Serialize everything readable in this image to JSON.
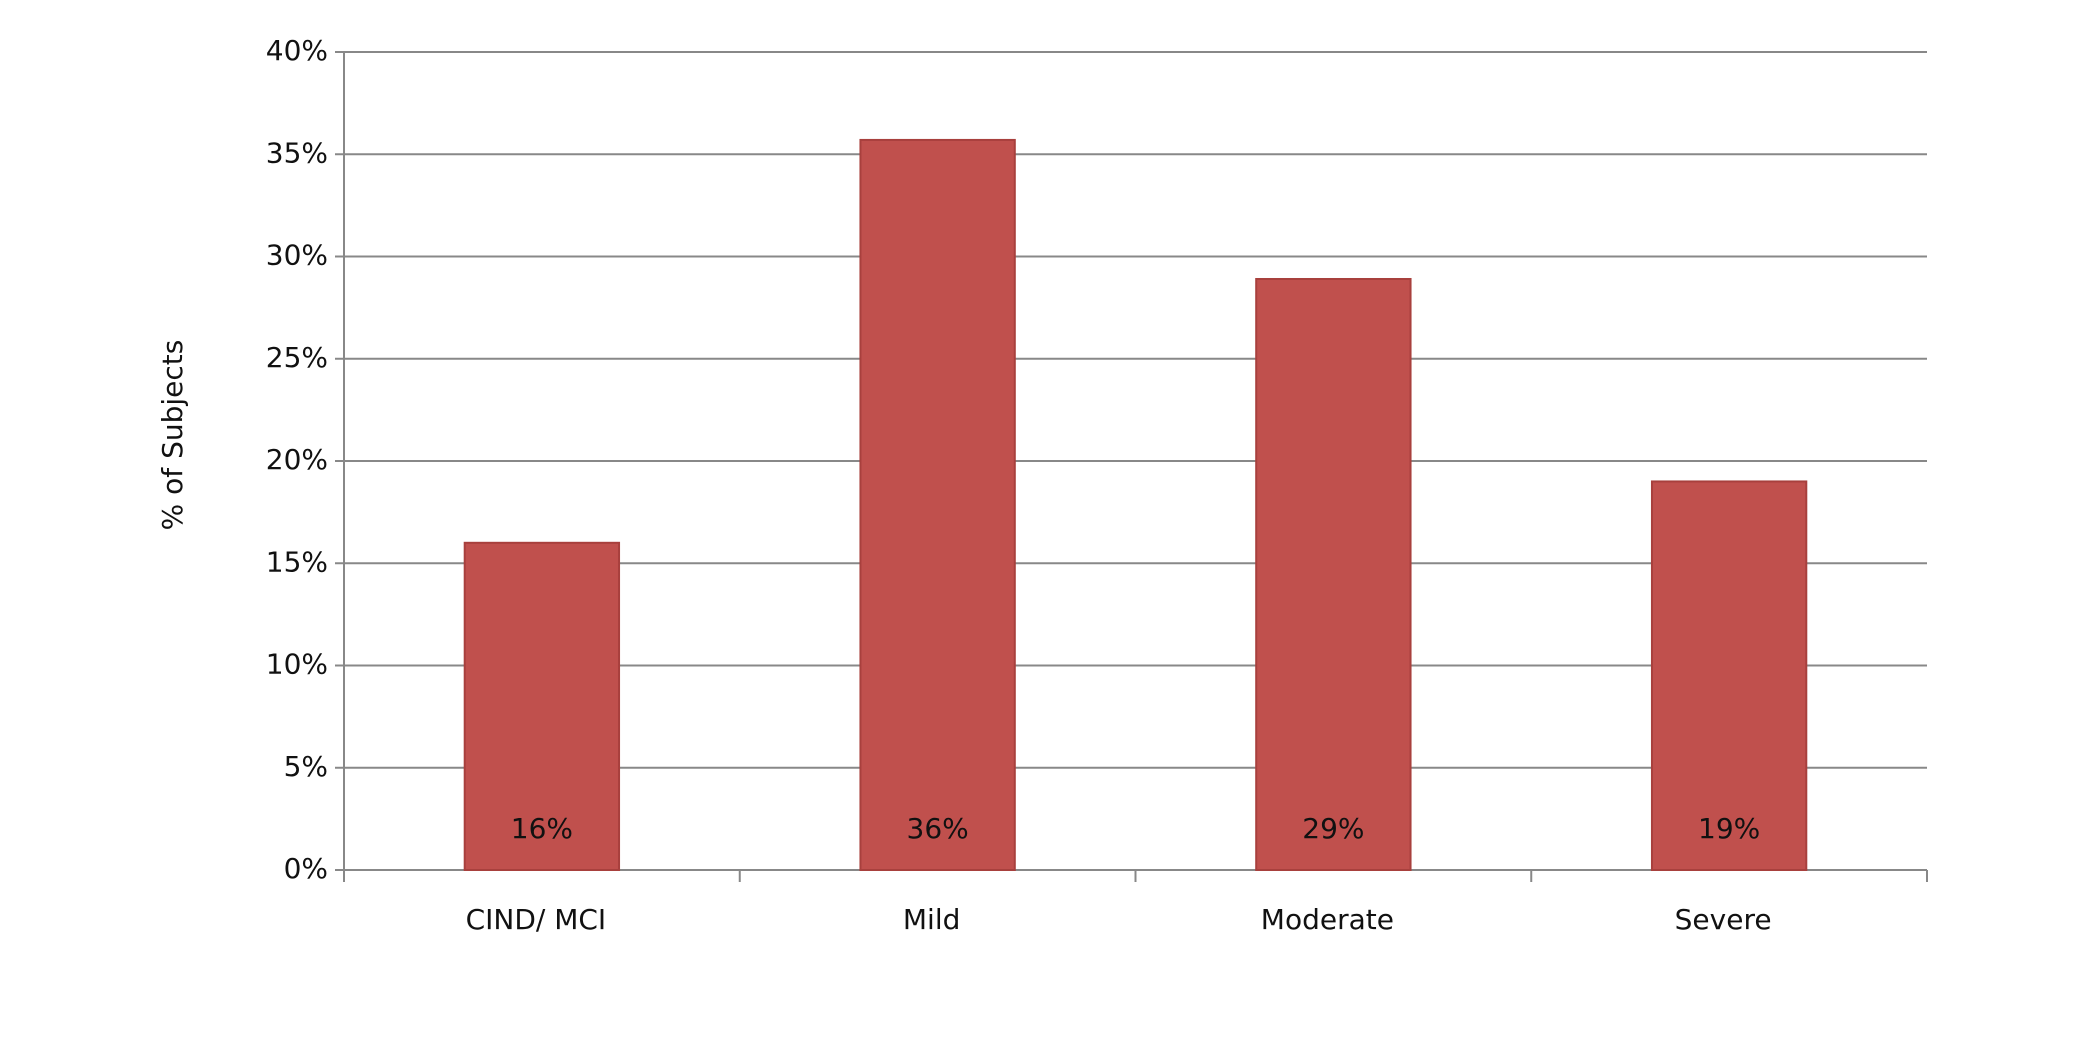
{
  "chart_data": {
    "type": "bar",
    "y_axis_label": "% of Subjects",
    "categories": [
      "CIND/ MCI",
      "Mild",
      "Moderate",
      "Severe"
    ],
    "values": [
      16,
      35.7,
      28.9,
      19
    ],
    "value_labels": [
      "16%",
      "36%",
      "29%",
      "19%"
    ],
    "color": "#c0504d",
    "ylim": [
      0,
      40
    ],
    "yticks": [
      {
        "value": 0,
        "label": "0%"
      },
      {
        "value": 5,
        "label": "5%"
      },
      {
        "value": 10,
        "label": "10%"
      },
      {
        "value": 15,
        "label": "15%"
      },
      {
        "value": 20,
        "label": "20%"
      },
      {
        "value": 25,
        "label": "25%"
      },
      {
        "value": 30,
        "label": "30%"
      },
      {
        "value": 35,
        "label": "35%"
      },
      {
        "value": 40,
        "label": "40%"
      }
    ],
    "grid": true
  }
}
